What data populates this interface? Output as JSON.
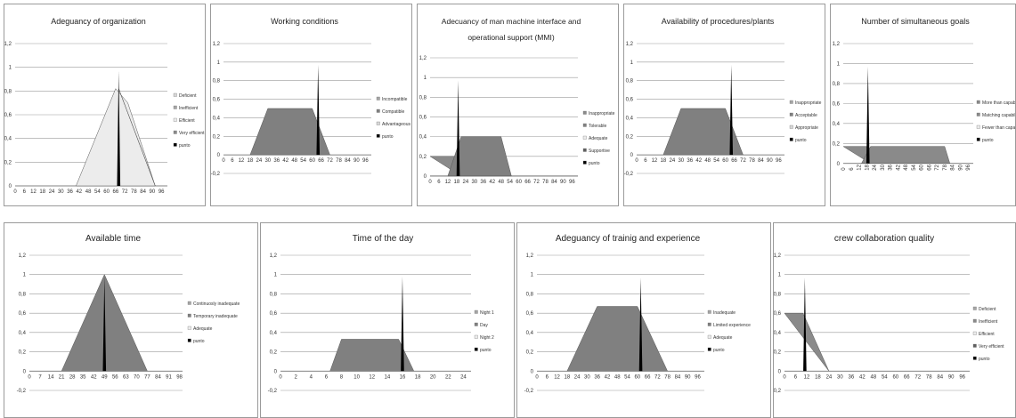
{
  "chart_data": [
    {
      "type": "area",
      "title": "Adeguancy of organization",
      "title_lines": [
        "Adeguancy of organization"
      ],
      "xticks": [
        "0",
        "6",
        "12",
        "18",
        "24",
        "30",
        "36",
        "42",
        "48",
        "54",
        "60",
        "66",
        "72",
        "78",
        "84",
        "90",
        "96"
      ],
      "yticks": [
        "0",
        "0,2",
        "0,4",
        "0,6",
        "0,8",
        "1",
        "1,2"
      ],
      "xlim": [
        0,
        100
      ],
      "ylim": [
        0,
        1.2
      ],
      "series": [
        {
          "name": "Deficient",
          "color": "#d8d8d8",
          "points": []
        },
        {
          "name": "Inefficient",
          "color": "#a6a6a6",
          "points": []
        },
        {
          "name": "Efficient",
          "color": "#ececec",
          "points": [
            [
              40,
              0
            ],
            [
              66,
              0.82
            ],
            [
              74,
              0.7
            ],
            [
              92,
              0
            ]
          ]
        },
        {
          "name": "Very efficient",
          "color": "#8a8a8a",
          "points": [
            [
              68,
              0.82
            ],
            [
              92,
              0
            ]
          ]
        },
        {
          "name": "punto",
          "color": "#000000",
          "spike_x": 68,
          "spike_y": 0.97
        }
      ]
    },
    {
      "type": "area",
      "title": "Working conditions",
      "title_lines": [
        "Working conditions"
      ],
      "xticks": [
        "0",
        "6",
        "12",
        "18",
        "24",
        "30",
        "36",
        "42",
        "48",
        "54",
        "60",
        "66",
        "72",
        "78",
        "84",
        "90",
        "96"
      ],
      "yticks": [
        "-0,2",
        "0",
        "0,2",
        "0,4",
        "0,6",
        "0,8",
        "1",
        "1,2"
      ],
      "xlim": [
        0,
        100
      ],
      "ylim": [
        -0.2,
        1.2
      ],
      "series": [
        {
          "name": "Incompatible",
          "color": "#a6a6a6",
          "points": []
        },
        {
          "name": "Compatible",
          "color": "#808080",
          "points": [
            [
              18,
              0
            ],
            [
              30,
              0.5
            ],
            [
              60,
              0.5
            ],
            [
              72,
              0
            ]
          ]
        },
        {
          "name": "Advantageous",
          "color": "#d8d8d8",
          "points": []
        },
        {
          "name": "punto",
          "color": "#000000",
          "spike_x": 64,
          "spike_y": 0.97
        }
      ]
    },
    {
      "type": "area",
      "title": "Adecuancy of man machine interface and operational support (MMI)",
      "title_lines": [
        "Adecuancy of man machine interface and",
        "operational support (MMI)"
      ],
      "xticks": [
        "0",
        "6",
        "12",
        "18",
        "24",
        "30",
        "36",
        "42",
        "48",
        "54",
        "60",
        "66",
        "72",
        "78",
        "84",
        "90",
        "96"
      ],
      "yticks": [
        "0",
        "0,2",
        "0,4",
        "0,6",
        "0,8",
        "1",
        "1,2"
      ],
      "xlim": [
        0,
        100
      ],
      "ylim": [
        -0.1,
        1.2
      ],
      "series": [
        {
          "name": "Inappropriate",
          "color": "#8a8a8a",
          "points": [
            [
              0,
              0.2
            ],
            [
              18,
              0.2
            ],
            [
              21,
              0
            ]
          ]
        },
        {
          "name": "Tolerable",
          "color": "#808080",
          "points": [
            [
              12,
              0
            ],
            [
              21,
              0.4
            ],
            [
              48,
              0.4
            ],
            [
              55,
              0
            ]
          ]
        },
        {
          "name": "Adequate",
          "color": "#ececec",
          "points": []
        },
        {
          "name": "Supportive",
          "color": "#5f5f5f",
          "points": []
        },
        {
          "name": "punto",
          "color": "#000000",
          "spike_x": 19,
          "spike_y": 0.97
        }
      ]
    },
    {
      "type": "area",
      "title": "Availability of procedures/plants",
      "title_lines": [
        "Availability of procedures/plants"
      ],
      "xticks": [
        "0",
        "6",
        "12",
        "18",
        "24",
        "30",
        "36",
        "42",
        "48",
        "54",
        "60",
        "66",
        "72",
        "78",
        "84",
        "90",
        "96"
      ],
      "yticks": [
        "-0,2",
        "0",
        "0,2",
        "0,4",
        "0,6",
        "0,8",
        "1",
        "1,2"
      ],
      "xlim": [
        0,
        100
      ],
      "ylim": [
        -0.2,
        1.2
      ],
      "series": [
        {
          "name": "Inappropriate",
          "color": "#a6a6a6",
          "points": []
        },
        {
          "name": "Acceptable",
          "color": "#808080",
          "points": [
            [
              18,
              0
            ],
            [
              30,
              0.5
            ],
            [
              60,
              0.5
            ],
            [
              72,
              0
            ]
          ]
        },
        {
          "name": "Appropriate",
          "color": "#d8d8d8",
          "points": []
        },
        {
          "name": "punto",
          "color": "#000000",
          "spike_x": 64,
          "spike_y": 0.97
        }
      ]
    },
    {
      "type": "area",
      "title": "Number of simultaneous goals",
      "title_lines": [
        "Number of simultaneous goals"
      ],
      "xticks": [
        "0",
        "6",
        "12",
        "18",
        "24",
        "30",
        "36",
        "42",
        "48",
        "54",
        "60",
        "66",
        "72",
        "78",
        "84",
        "90",
        "96"
      ],
      "yticks": [
        "0",
        "0,2",
        "0,4",
        "0,6",
        "0,8",
        "1",
        "1,2"
      ],
      "xlim": [
        0,
        100
      ],
      "ylim": [
        -0.1,
        1.2
      ],
      "series": [
        {
          "name": "More than capability",
          "color": "#8a8a8a",
          "points": [
            [
              0,
              0.17
            ],
            [
              18,
              0.17
            ],
            [
              21,
              0
            ]
          ]
        },
        {
          "name": "Matching capability",
          "color": "#8a8a8a",
          "points": [
            [
              14,
              0
            ],
            [
              21,
              0.17
            ],
            [
              78,
              0.17
            ],
            [
              82,
              0
            ]
          ]
        },
        {
          "name": "Fewer than capability",
          "color": "#ececec",
          "points": []
        },
        {
          "name": "punto",
          "color": "#000000",
          "spike_x": 19,
          "spike_y": 0.97
        }
      ]
    },
    {
      "type": "area",
      "title": "Available time",
      "title_lines": [
        "Available time"
      ],
      "xticks": [
        "0",
        "7",
        "14",
        "21",
        "28",
        "35",
        "42",
        "49",
        "56",
        "63",
        "70",
        "77",
        "84",
        "91",
        "98"
      ],
      "yticks": [
        "-0,2",
        "0",
        "0,2",
        "0,4",
        "0,6",
        "0,8",
        "1",
        "1,2"
      ],
      "xlim": [
        0,
        100
      ],
      "ylim": [
        -0.2,
        1.2
      ],
      "series": [
        {
          "name": "Continuosly inadequate",
          "color": "#a6a6a6",
          "points": []
        },
        {
          "name": "Temporary inadequate",
          "color": "#808080",
          "points": [
            [
              21,
              0
            ],
            [
              49,
              1
            ],
            [
              77,
              0
            ]
          ]
        },
        {
          "name": "Adequate",
          "color": "#ececec",
          "points": []
        },
        {
          "name": "punto",
          "color": "#000000",
          "spike_x": 49,
          "spike_y": 0.98
        }
      ]
    },
    {
      "type": "area",
      "title": "Time of the day",
      "title_lines": [
        "Time of the day"
      ],
      "xticks": [
        "0",
        "2",
        "4",
        "6",
        "8",
        "10",
        "12",
        "14",
        "16",
        "18",
        "20",
        "22",
        "24"
      ],
      "yticks": [
        "-0,2",
        "0",
        "0,2",
        "0,4",
        "0,6",
        "0,8",
        "1",
        "1,2"
      ],
      "xlim": [
        0,
        25
      ],
      "ylim": [
        -0.2,
        1.2
      ],
      "series": [
        {
          "name": "Night 1",
          "color": "#a6a6a6",
          "points": []
        },
        {
          "name": "Day",
          "color": "#808080",
          "points": [
            [
              6.5,
              0
            ],
            [
              8,
              0.33
            ],
            [
              15.5,
              0.33
            ],
            [
              17.5,
              0
            ]
          ]
        },
        {
          "name": "Night 2",
          "color": "#ececec",
          "points": []
        },
        {
          "name": "punto",
          "color": "#000000",
          "spike_x": 16,
          "spike_y": 0.98
        }
      ]
    },
    {
      "type": "area",
      "title": "Adeguancy of trainig and experience",
      "title_lines": [
        "Adeguancy of trainig and experience"
      ],
      "xticks": [
        "0",
        "6",
        "12",
        "18",
        "24",
        "30",
        "36",
        "42",
        "48",
        "54",
        "60",
        "66",
        "72",
        "78",
        "84",
        "90",
        "96"
      ],
      "yticks": [
        "-0,2",
        "0",
        "0,2",
        "0,4",
        "0,6",
        "0,8",
        "1",
        "1,2"
      ],
      "xlim": [
        0,
        100
      ],
      "ylim": [
        -0.2,
        1.2
      ],
      "series": [
        {
          "name": "Inadequate",
          "color": "#a6a6a6",
          "points": []
        },
        {
          "name": "Limited experience",
          "color": "#808080",
          "points": [
            [
              18,
              0
            ],
            [
              36,
              0.67
            ],
            [
              60,
              0.67
            ],
            [
              78,
              0
            ]
          ]
        },
        {
          "name": "Adequate",
          "color": "#ececec",
          "points": []
        },
        {
          "name": "punto",
          "color": "#000000",
          "spike_x": 62,
          "spike_y": 0.97
        }
      ]
    },
    {
      "type": "area",
      "title": "crew collaboration quality",
      "title_lines": [
        "crew collaboration quality"
      ],
      "xticks": [
        "0",
        "6",
        "12",
        "18",
        "24",
        "30",
        "36",
        "42",
        "48",
        "54",
        "60",
        "66",
        "72",
        "78",
        "84",
        "90",
        "96"
      ],
      "yticks": [
        "-0,2",
        "0",
        "0,2",
        "0,4",
        "0,6",
        "0,8",
        "1",
        "1,2"
      ],
      "xlim": [
        0,
        100
      ],
      "ylim": [
        -0.2,
        1.2
      ],
      "series": [
        {
          "name": "Deficient",
          "color": "#a6a6a6",
          "points": []
        },
        {
          "name": "Inefficient",
          "color": "#8a8a8a",
          "points": [
            [
              0,
              0.6
            ],
            [
              10,
              0.6
            ],
            [
              24,
              0
            ]
          ]
        },
        {
          "name": "Efficient",
          "color": "#ececec",
          "points": []
        },
        {
          "name": "Very efficient",
          "color": "#5f5f5f",
          "points": []
        },
        {
          "name": "punto",
          "color": "#000000",
          "spike_x": 11,
          "spike_y": 0.97
        }
      ]
    }
  ]
}
